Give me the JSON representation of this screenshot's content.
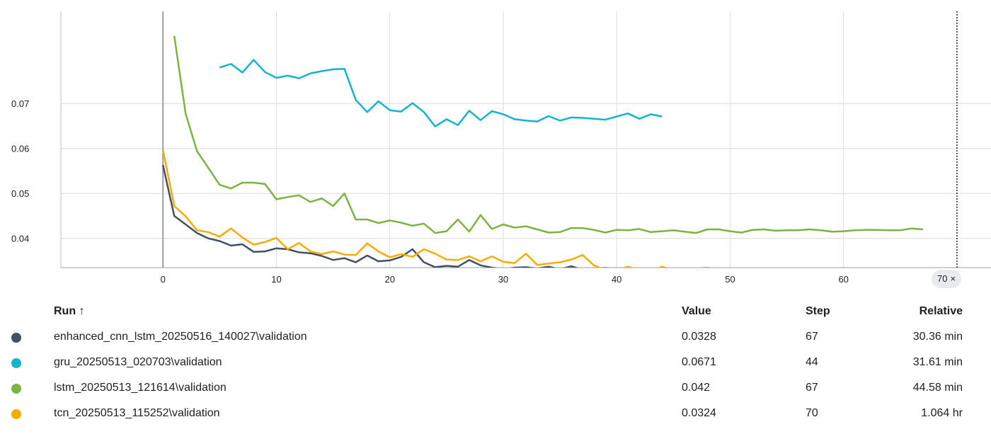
{
  "chart_data": {
    "type": "line",
    "xlim": [
      -9,
      73
    ],
    "ylim": [
      0.0335,
      0.0905
    ],
    "x_ticks": [
      0,
      10,
      20,
      30,
      40,
      50,
      60
    ],
    "y_ticks": [
      0.04,
      0.05,
      0.06,
      0.07
    ],
    "y_tick_labels": [
      "0.04",
      "0.05",
      "0.06",
      "0.07"
    ],
    "grid": true,
    "series": [
      {
        "name": "enhanced_cnn_lstm_20250516_140027\\validation",
        "color": "#425066",
        "x": [
          0,
          1,
          2,
          3,
          4,
          5,
          6,
          7,
          8,
          9,
          10,
          11,
          12,
          13,
          14,
          15,
          16,
          17,
          18,
          19,
          20,
          21,
          22,
          23,
          24,
          25,
          26,
          27,
          28,
          29,
          30,
          31,
          32,
          33,
          34,
          35,
          36,
          37,
          38,
          39,
          40,
          41,
          42,
          43,
          44,
          45,
          46,
          47,
          48,
          49,
          50,
          51,
          52,
          53,
          54,
          55,
          56,
          57,
          58,
          59,
          60,
          61,
          62,
          63,
          64,
          65,
          66,
          67
        ],
        "y": [
          0.0563,
          0.045,
          0.0431,
          0.0412,
          0.04,
          0.0394,
          0.0384,
          0.0387,
          0.037,
          0.0371,
          0.0378,
          0.0376,
          0.0369,
          0.0367,
          0.0361,
          0.0352,
          0.0356,
          0.0347,
          0.0362,
          0.0349,
          0.0351,
          0.0359,
          0.0376,
          0.0347,
          0.0336,
          0.0339,
          0.0337,
          0.0352,
          0.034,
          0.0335,
          0.0331,
          0.0335,
          0.0336,
          0.0333,
          0.0337,
          0.0331,
          0.0338,
          0.033,
          0.0332,
          0.0334,
          0.0331,
          0.0332,
          0.0331,
          0.0331,
          0.0329,
          0.0329,
          0.0331,
          0.0327,
          0.0331,
          0.033,
          0.0329,
          0.033,
          0.0329,
          0.0329,
          0.0329,
          0.0328,
          0.0328,
          0.0328,
          0.0329,
          0.033,
          0.033,
          0.0329,
          0.0328,
          0.0331,
          0.0329,
          0.0329,
          0.0329,
          0.0328
        ]
      },
      {
        "name": "gru_20250513_020703\\validation",
        "color": "#12b5cb",
        "x": [
          5,
          6,
          7,
          8,
          9,
          10,
          11,
          12,
          13,
          14,
          15,
          16,
          17,
          18,
          19,
          20,
          21,
          22,
          23,
          24,
          25,
          26,
          27,
          28,
          29,
          30,
          31,
          32,
          33,
          34,
          35,
          36,
          37,
          38,
          39,
          40,
          41,
          42,
          43,
          44
        ],
        "y": [
          0.078,
          0.0788,
          0.0769,
          0.0797,
          0.077,
          0.0757,
          0.0762,
          0.0756,
          0.0767,
          0.0772,
          0.0776,
          0.0777,
          0.0708,
          0.0681,
          0.0705,
          0.0685,
          0.0682,
          0.0701,
          0.0681,
          0.0649,
          0.0665,
          0.0652,
          0.0684,
          0.0663,
          0.0683,
          0.0676,
          0.0665,
          0.0662,
          0.066,
          0.0672,
          0.0662,
          0.0669,
          0.0668,
          0.0666,
          0.0664,
          0.0671,
          0.0678,
          0.0666,
          0.0676,
          0.0671
        ]
      },
      {
        "name": "lstm_20250513_121614\\validation",
        "color": "#7cb342",
        "x": [
          1,
          2,
          3,
          4,
          5,
          6,
          7,
          8,
          9,
          10,
          11,
          12,
          13,
          14,
          15,
          16,
          17,
          18,
          19,
          20,
          21,
          22,
          23,
          24,
          25,
          26,
          27,
          28,
          29,
          30,
          31,
          32,
          33,
          34,
          35,
          36,
          37,
          38,
          39,
          40,
          41,
          42,
          43,
          44,
          45,
          46,
          47,
          48,
          49,
          50,
          51,
          52,
          53,
          54,
          55,
          56,
          57,
          58,
          59,
          60,
          61,
          62,
          63,
          64,
          65,
          66,
          67
        ],
        "y": [
          0.085,
          0.0677,
          0.0594,
          0.0557,
          0.0519,
          0.0511,
          0.0524,
          0.0524,
          0.0521,
          0.0487,
          0.0492,
          0.0496,
          0.0481,
          0.0489,
          0.0472,
          0.05,
          0.0442,
          0.0442,
          0.0434,
          0.044,
          0.0435,
          0.0428,
          0.0433,
          0.0412,
          0.0416,
          0.0442,
          0.0415,
          0.0452,
          0.0421,
          0.0431,
          0.0424,
          0.0427,
          0.042,
          0.0413,
          0.0414,
          0.0423,
          0.0423,
          0.0419,
          0.0413,
          0.0419,
          0.0418,
          0.0421,
          0.0414,
          0.0416,
          0.0418,
          0.0415,
          0.0412,
          0.042,
          0.042,
          0.0416,
          0.0413,
          0.0419,
          0.042,
          0.0417,
          0.0418,
          0.0418,
          0.042,
          0.0418,
          0.0415,
          0.0416,
          0.0418,
          0.0419,
          0.0419,
          0.0418,
          0.0418,
          0.0422,
          0.042
        ]
      },
      {
        "name": "tcn_20250513_115252\\validation",
        "color": "#f9ab00",
        "x": [
          0,
          1,
          2,
          3,
          4,
          5,
          6,
          7,
          8,
          9,
          10,
          11,
          12,
          13,
          14,
          15,
          16,
          17,
          18,
          19,
          20,
          21,
          22,
          23,
          24,
          25,
          26,
          27,
          28,
          29,
          30,
          31,
          32,
          33,
          34,
          35,
          36,
          37,
          38,
          39,
          40,
          41,
          42,
          43,
          44,
          45,
          46,
          47,
          48,
          49,
          50,
          51,
          52,
          53,
          54,
          55,
          56,
          57,
          58,
          59,
          60,
          61,
          62,
          63,
          64,
          65,
          66,
          67,
          68,
          69,
          70
        ],
        "y": [
          0.0597,
          0.0472,
          0.0449,
          0.0418,
          0.0414,
          0.0404,
          0.0422,
          0.0402,
          0.0386,
          0.0392,
          0.0401,
          0.0376,
          0.039,
          0.0371,
          0.0365,
          0.0371,
          0.0364,
          0.0363,
          0.0389,
          0.0371,
          0.0358,
          0.0365,
          0.0359,
          0.0376,
          0.0366,
          0.0353,
          0.0352,
          0.036,
          0.0349,
          0.036,
          0.0348,
          0.0345,
          0.0366,
          0.0341,
          0.0344,
          0.0347,
          0.0353,
          0.0363,
          0.034,
          0.0329,
          0.0329,
          0.0337,
          0.033,
          0.0326,
          0.0337,
          0.0329,
          0.0327,
          0.0333,
          0.0335,
          0.0328,
          0.0323,
          0.0327,
          0.0328,
          0.0332,
          0.0327,
          0.0325,
          0.0327,
          0.0326,
          0.0326,
          0.0325,
          0.0326,
          0.0325,
          0.0325,
          0.0325,
          0.0324,
          0.0325,
          0.0325,
          0.0324,
          0.0324,
          0.0324,
          0.0324
        ]
      }
    ]
  },
  "cursor": {
    "label": "70",
    "close_glyph": "×"
  },
  "table": {
    "headers": {
      "run": "Run ↑",
      "value": "Value",
      "step": "Step",
      "relative": "Relative"
    },
    "rows": [
      {
        "run": "enhanced_cnn_lstm_20250516_140027\\validation",
        "value": "0.0328",
        "step": "67",
        "relative": "30.36 min",
        "color": "#425066"
      },
      {
        "run": "gru_20250513_020703\\validation",
        "value": "0.0671",
        "step": "44",
        "relative": "31.61 min",
        "color": "#12b5cb"
      },
      {
        "run": "lstm_20250513_121614\\validation",
        "value": "0.042",
        "step": "67",
        "relative": "44.58 min",
        "color": "#7cb342"
      },
      {
        "run": "tcn_20250513_115252\\validation",
        "value": "0.0324",
        "step": "70",
        "relative": "1.064 hr",
        "color": "#f9ab00"
      }
    ]
  }
}
